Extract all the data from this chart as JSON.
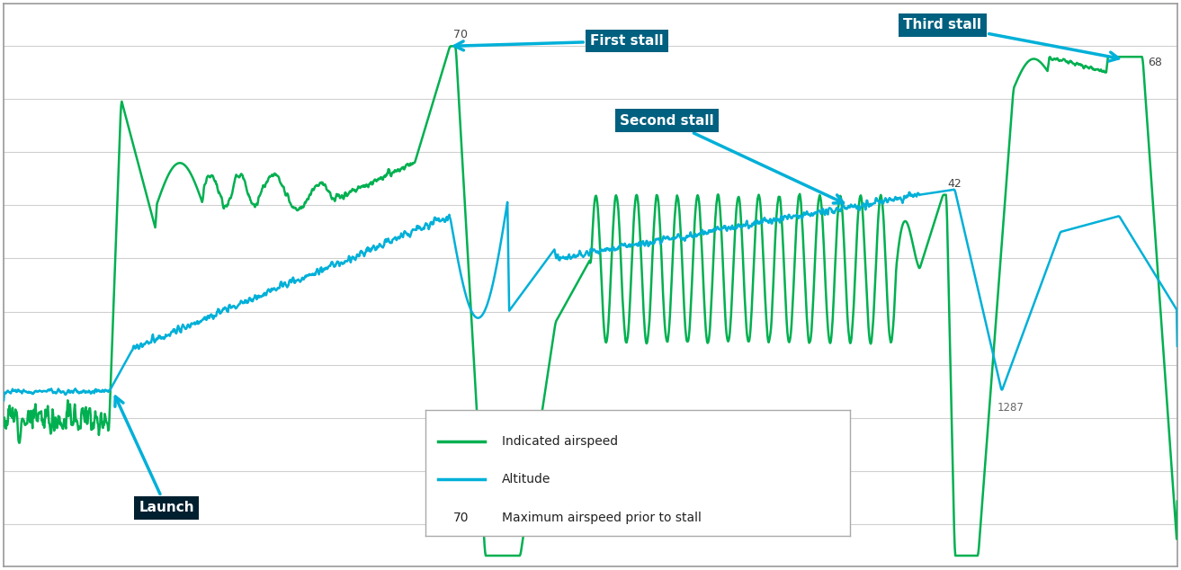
{
  "green_color": "#00b050",
  "blue_color": "#00b0d8",
  "bg_color": "#ffffff",
  "border_color": "#999999",
  "grid_color": "#d0d0d0",
  "annotation_teal": "#006080",
  "launch_dark": "#002030",
  "lbl_70": "70",
  "lbl_42": "42",
  "lbl_68": "68",
  "lbl_1287": "1287",
  "ann_first": "First stall",
  "ann_second": "Second stall",
  "ann_third": "Third stall",
  "ann_launch": "Launch",
  "leg_airspeed": "Indicated airspeed",
  "leg_altitude": "Altitude",
  "leg_max": "Maximum airspeed prior to stall",
  "leg_num": "70",
  "ymin": -28,
  "ymax": 78
}
